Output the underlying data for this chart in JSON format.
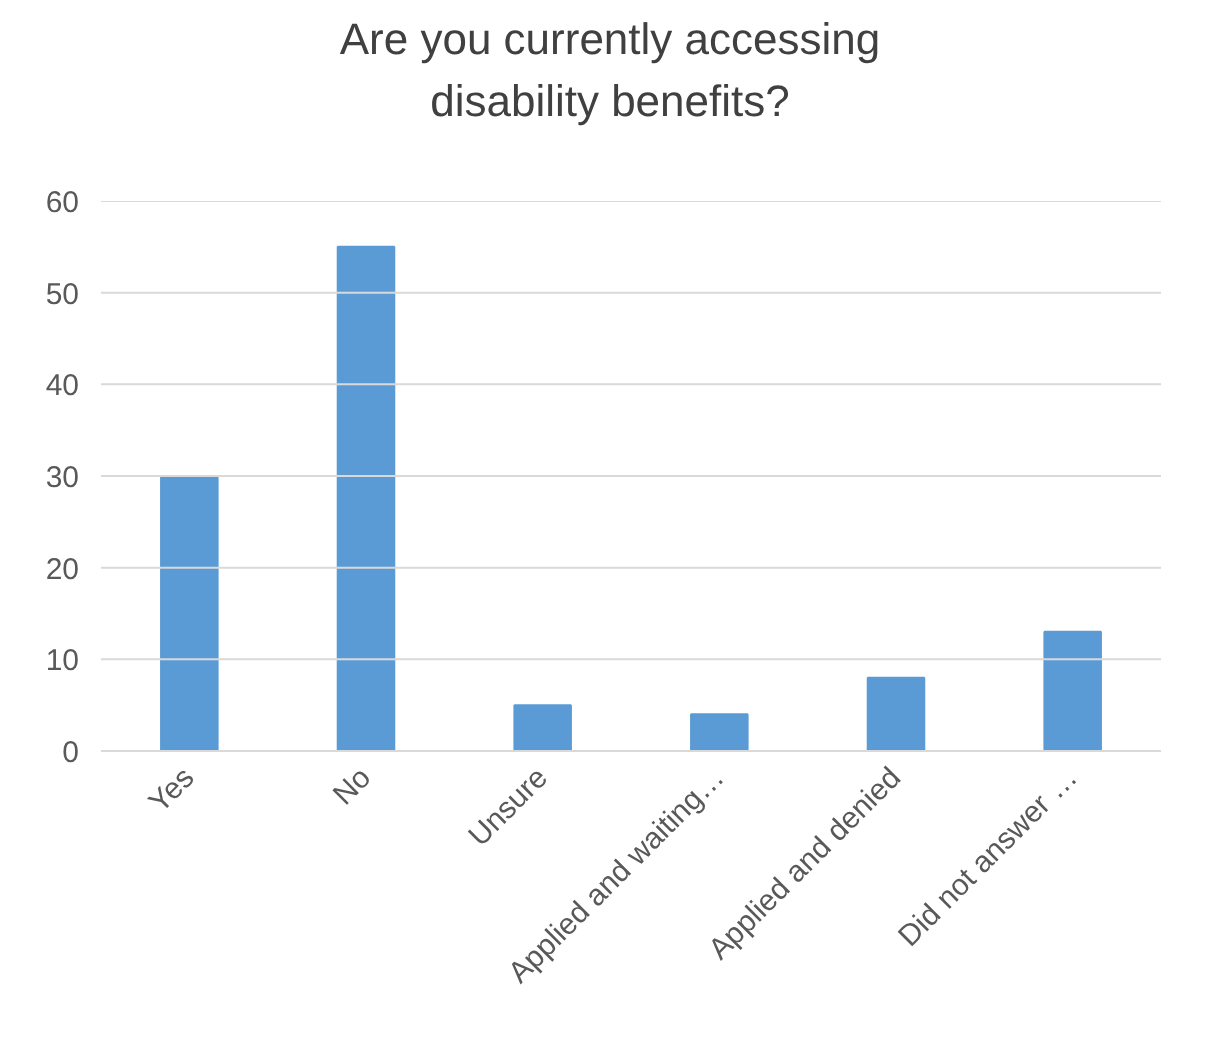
{
  "chart_data": {
    "type": "bar",
    "title": "Are you currently accessing\ndisability benefits?",
    "categories": [
      "Yes",
      "No",
      "Unsure",
      "Applied and waiting…",
      "Applied and denied",
      "Did not answer …"
    ],
    "values": [
      30,
      55,
      5,
      4,
      8,
      13
    ],
    "color": "#5b9bd5",
    "ylim": [
      0,
      60
    ],
    "yticks": [
      0,
      10,
      20,
      30,
      40,
      50,
      60
    ],
    "grid": "y"
  }
}
